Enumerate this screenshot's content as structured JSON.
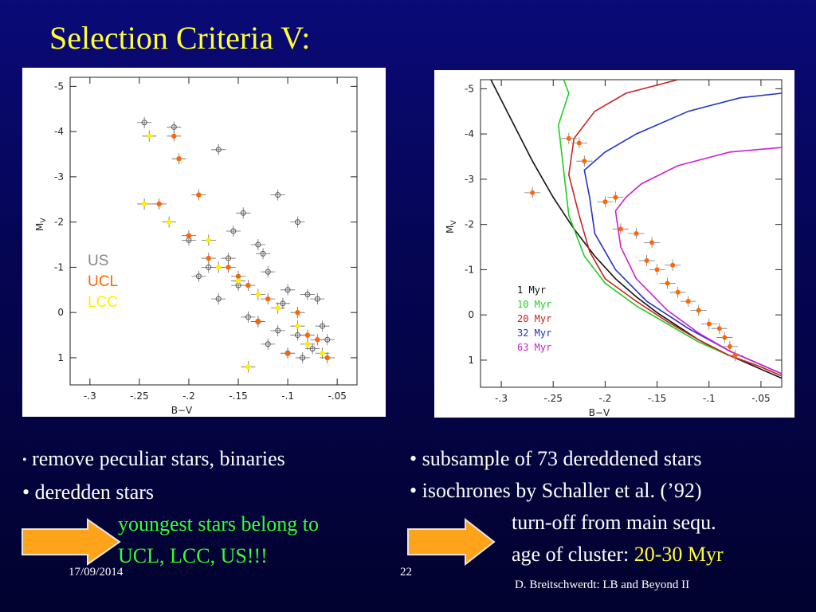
{
  "slide": {
    "title": "Selection Criteria V:",
    "footer_date": "17/09/2014",
    "footer_page": "22",
    "footer_author": "D. Breitschwerdt: LB and Beyond II"
  },
  "left_bullets": {
    "b1": "remove peculiar stars, binaries",
    "b2": "• deredden stars",
    "c1": "youngest stars belong to",
    "c2": "UCL, LCC, US!!!"
  },
  "right_bullets": {
    "b1": "• subsample of 73 dereddened stars",
    "b2": "• isochrones by Schaller et al. (’92)",
    "c1": "turn-off from main sequ.",
    "c2_prefix": "age of cluster: ",
    "c2_highlight": "20-30 Myr"
  },
  "colors": {
    "title": "#ffff33",
    "highlight_green": "#33ff33",
    "arrow": "#ffa31a",
    "US": "#888888",
    "UCL": "#ff6600",
    "LCC": "#ffee00"
  },
  "chart_data": [
    {
      "type": "scatter",
      "xlabel": "B−V",
      "ylabel": "M",
      "ylabel_sub": "V",
      "xlim": [
        -0.32,
        -0.03
      ],
      "ylim": [
        1.6,
        -5.2
      ],
      "y_inverted": true,
      "xticks": [
        -0.3,
        -0.25,
        -0.2,
        -0.15,
        -0.1,
        -0.05
      ],
      "xtick_labels": [
        "-.3",
        "-.25",
        "-.2",
        "-.15",
        "-.1",
        "-.05"
      ],
      "yticks": [
        -5,
        -4,
        -3,
        -2,
        -1,
        0,
        1
      ],
      "ytick_labels": [
        "-5",
        "-4",
        "-3",
        "-2",
        "-1",
        "0",
        "1"
      ],
      "legend": [
        "US",
        "UCL",
        "LCC"
      ],
      "legend_placement": "left",
      "series": [
        {
          "name": "US",
          "color": "#555555",
          "x": [
            -0.245,
            -0.215,
            -0.17,
            -0.145,
            -0.11,
            -0.09,
            -0.13,
            -0.16,
            -0.18,
            -0.2,
            -0.19,
            -0.15,
            -0.12,
            -0.1,
            -0.08,
            -0.07,
            -0.14,
            -0.17,
            -0.13,
            -0.11,
            -0.09,
            -0.06,
            -0.12,
            -0.1,
            -0.085,
            -0.075,
            -0.065,
            -0.155,
            -0.125,
            -0.105
          ],
          "y": [
            -4.2,
            -4.1,
            -3.6,
            -2.2,
            -2.6,
            -2.0,
            -1.5,
            -1.2,
            -1.0,
            -1.6,
            -0.8,
            -0.6,
            -0.9,
            -0.5,
            -0.4,
            -0.3,
            0.1,
            -0.3,
            0.2,
            0.4,
            0.5,
            0.6,
            0.7,
            0.9,
            1.0,
            0.8,
            0.3,
            -1.8,
            -1.3,
            -0.2
          ]
        },
        {
          "name": "UCL",
          "color": "#ff6600",
          "x": [
            -0.215,
            -0.21,
            -0.19,
            -0.2,
            -0.23,
            -0.18,
            -0.16,
            -0.14,
            -0.12,
            -0.09,
            -0.08,
            -0.1,
            -0.07,
            -0.06,
            -0.15,
            -0.13
          ],
          "y": [
            -3.9,
            -3.4,
            -2.6,
            -1.7,
            -2.4,
            -1.2,
            -1.0,
            -0.6,
            -0.3,
            0.0,
            0.5,
            0.9,
            0.6,
            1.0,
            -0.8,
            0.2
          ]
        },
        {
          "name": "LCC",
          "color": "#ffee00",
          "x": [
            -0.24,
            -0.245,
            -0.22,
            -0.17,
            -0.15,
            -0.13,
            -0.11,
            -0.09,
            -0.08,
            -0.065,
            -0.14,
            -0.18
          ],
          "y": [
            -3.9,
            -2.4,
            -2.0,
            -1.0,
            -0.7,
            -0.4,
            -0.1,
            0.3,
            0.7,
            0.9,
            1.2,
            -1.6
          ]
        }
      ]
    },
    {
      "type": "line",
      "xlabel": "B−V",
      "ylabel": "M",
      "ylabel_sub": "V",
      "xlim": [
        -0.32,
        -0.03
      ],
      "ylim": [
        1.6,
        -5.2
      ],
      "y_inverted": true,
      "xticks": [
        -0.3,
        -0.25,
        -0.2,
        -0.15,
        -0.1,
        -0.05
      ],
      "xtick_labels": [
        "-.3",
        "-.25",
        "-.2",
        "-.15",
        "-.1",
        "-.05"
      ],
      "yticks": [
        -5,
        -4,
        -3,
        -2,
        -1,
        0,
        1
      ],
      "ytick_labels": [
        "-5",
        "-4",
        "-3",
        "-2",
        "-1",
        "0",
        "1"
      ],
      "legend_placement": "center",
      "series": [
        {
          "name": "1 Myr",
          "color": "#111111",
          "x": [
            -0.31,
            -0.29,
            -0.27,
            -0.25,
            -0.23,
            -0.21,
            -0.19,
            -0.17,
            -0.15,
            -0.13,
            -0.11,
            -0.09,
            -0.07,
            -0.05,
            -0.03
          ],
          "y": [
            -5.2,
            -4.3,
            -3.4,
            -2.6,
            -1.9,
            -1.3,
            -0.8,
            -0.4,
            -0.05,
            0.25,
            0.55,
            0.8,
            1.0,
            1.2,
            1.4
          ]
        },
        {
          "name": "10 Myr",
          "color": "#22cc22",
          "x": [
            -0.24,
            -0.235,
            -0.245,
            -0.24,
            -0.235,
            -0.22,
            -0.2,
            -0.17,
            -0.14,
            -0.11,
            -0.08,
            -0.05,
            -0.03
          ],
          "y": [
            -5.2,
            -4.9,
            -4.2,
            -3.2,
            -2.2,
            -1.3,
            -0.7,
            -0.2,
            0.2,
            0.6,
            0.9,
            1.15,
            1.35
          ]
        },
        {
          "name": "20 Myr",
          "color": "#cc2222",
          "x": [
            -0.13,
            -0.18,
            -0.21,
            -0.23,
            -0.235,
            -0.225,
            -0.215,
            -0.2,
            -0.17,
            -0.14,
            -0.11,
            -0.08,
            -0.05,
            -0.03
          ],
          "y": [
            -5.2,
            -4.9,
            -4.5,
            -3.9,
            -3.1,
            -2.2,
            -1.4,
            -0.8,
            -0.3,
            0.15,
            0.55,
            0.9,
            1.15,
            1.35
          ]
        },
        {
          "name": "32 Myr",
          "color": "#2233cc",
          "x": [
            -0.03,
            -0.07,
            -0.12,
            -0.17,
            -0.2,
            -0.22,
            -0.215,
            -0.21,
            -0.19,
            -0.16,
            -0.12,
            -0.08,
            -0.05,
            -0.03
          ],
          "y": [
            -4.9,
            -4.8,
            -4.5,
            -4.0,
            -3.6,
            -3.2,
            -2.6,
            -1.8,
            -1.0,
            -0.3,
            0.3,
            0.8,
            1.1,
            1.3
          ]
        },
        {
          "name": "63 Myr",
          "color": "#cc22cc",
          "x": [
            -0.03,
            -0.08,
            -0.13,
            -0.165,
            -0.18,
            -0.19,
            -0.185,
            -0.17,
            -0.14,
            -0.11,
            -0.08,
            -0.05,
            -0.03
          ],
          "y": [
            -3.7,
            -3.6,
            -3.3,
            -2.9,
            -2.6,
            -2.3,
            -1.5,
            -0.8,
            -0.1,
            0.4,
            0.8,
            1.1,
            1.3
          ]
        }
      ],
      "scatter_points": {
        "x": [
          -0.27,
          -0.235,
          -0.225,
          -0.22,
          -0.2,
          -0.19,
          -0.17,
          -0.16,
          -0.15,
          -0.14,
          -0.13,
          -0.12,
          -0.11,
          -0.1,
          -0.09,
          -0.085,
          -0.08,
          -0.075,
          -0.185,
          -0.155,
          -0.135
        ],
        "y": [
          -2.7,
          -3.9,
          -3.8,
          -3.4,
          -2.5,
          -2.6,
          -1.8,
          -1.2,
          -1.0,
          -0.7,
          -0.5,
          -0.3,
          -0.1,
          0.2,
          0.3,
          0.5,
          0.7,
          0.9,
          -1.9,
          -1.6,
          -1.1
        ],
        "color": "#ff6600"
      }
    }
  ]
}
